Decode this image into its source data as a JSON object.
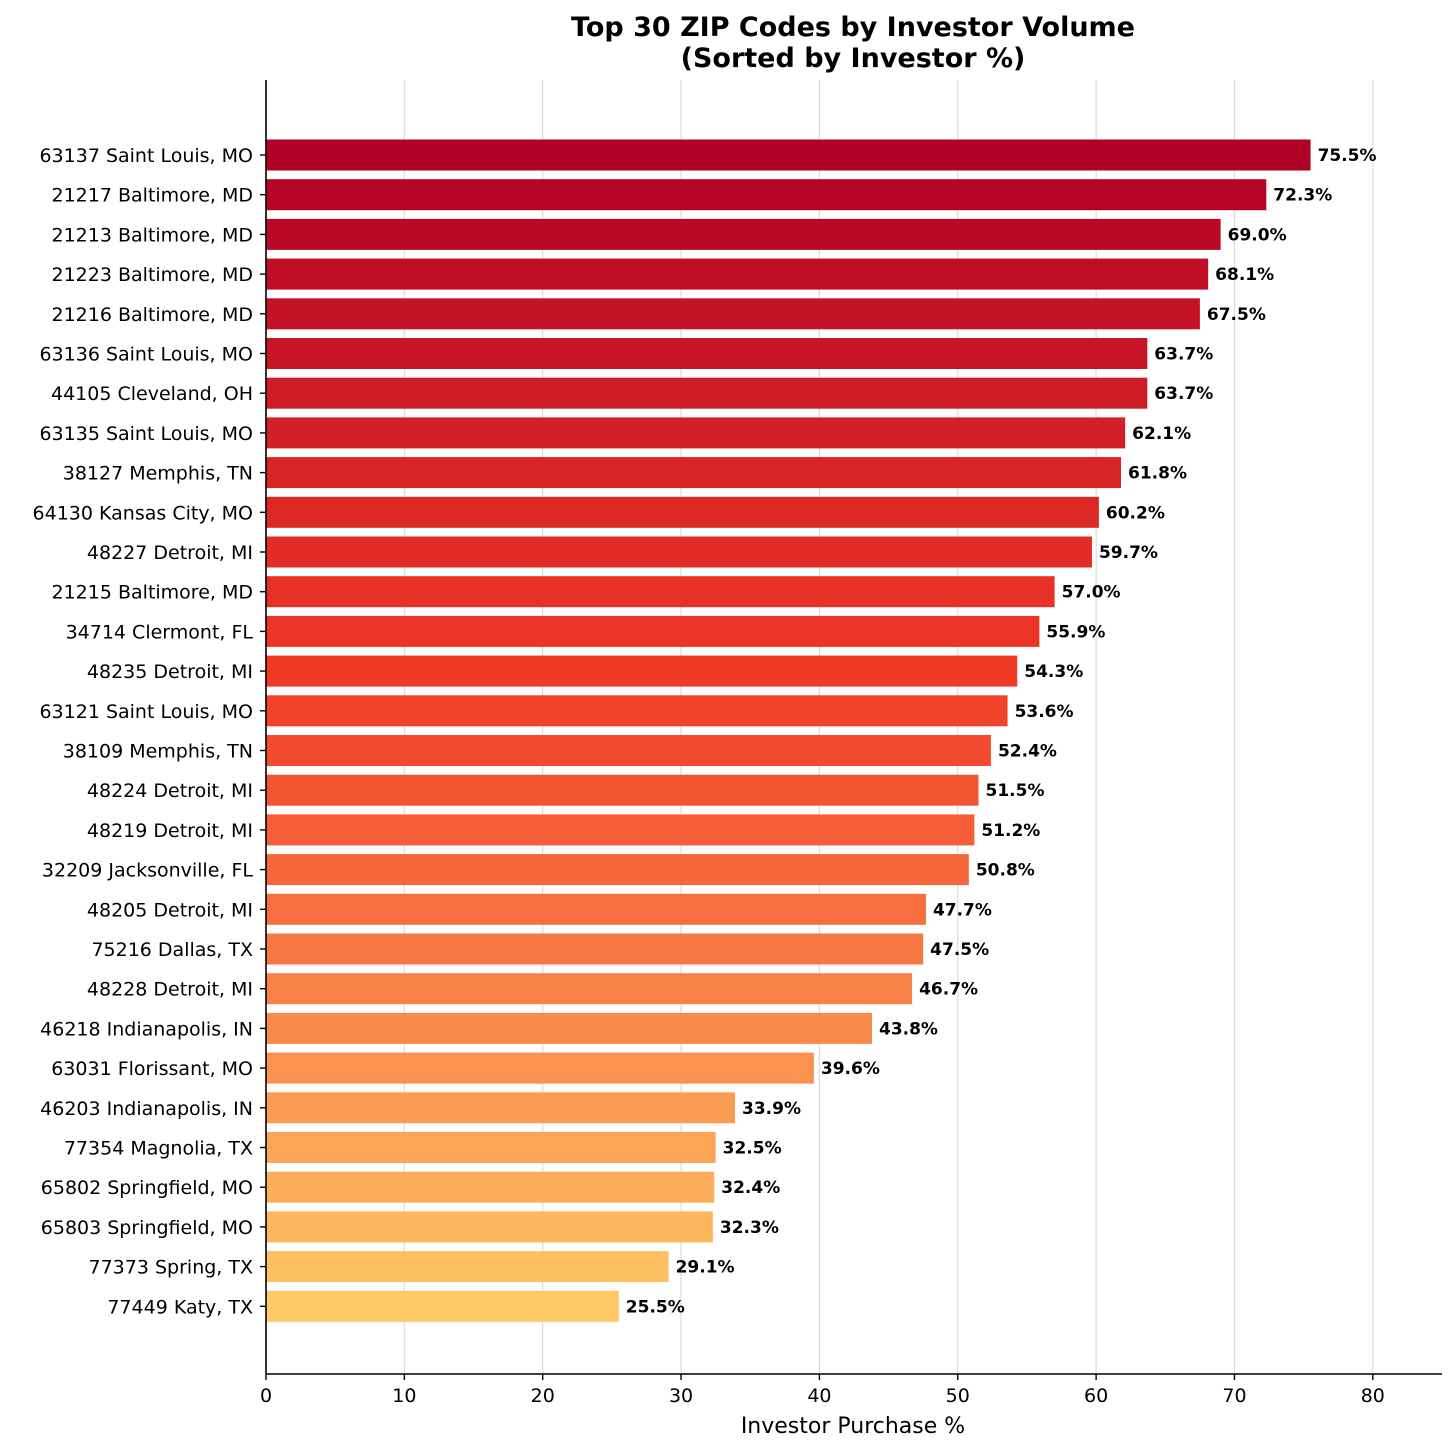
{
  "chart_data": {
    "type": "bar",
    "orientation": "horizontal",
    "title": [
      "Top 30 ZIP Codes by Investor Volume",
      "(Sorted by Investor %)"
    ],
    "xlabel": "Investor Purchase %",
    "ylabel": "",
    "xlim": [
      0,
      85
    ],
    "xticks": [
      0,
      10,
      20,
      30,
      40,
      50,
      60,
      70,
      80
    ],
    "grid": "vertical",
    "value_suffix": "%",
    "categories": [
      "63137 Saint Louis, MO",
      "21217 Baltimore, MD",
      "21213 Baltimore, MD",
      "21223 Baltimore, MD",
      "21216 Baltimore, MD",
      "63136 Saint Louis, MO",
      "44105 Cleveland, OH",
      "63135 Saint Louis, MO",
      "38127 Memphis, TN",
      "64130 Kansas City, MO",
      "48227 Detroit, MI",
      "21215 Baltimore, MD",
      "34714 Clermont, FL",
      "48235 Detroit, MI",
      "63121 Saint Louis, MO",
      "38109 Memphis, TN",
      "48224 Detroit, MI",
      "48219 Detroit, MI",
      "32209 Jacksonville, FL",
      "48205 Detroit, MI",
      "75216 Dallas, TX",
      "48228 Detroit, MI",
      "46218 Indianapolis, IN",
      "63031 Florissant, MO",
      "46203 Indianapolis, IN",
      "77354 Magnolia, TX",
      "65802 Springfield, MO",
      "65803 Springfield, MO",
      "77373 Spring, TX",
      "77449 Katy, TX"
    ],
    "values": [
      75.5,
      72.3,
      69.0,
      68.1,
      67.5,
      63.7,
      63.7,
      62.1,
      61.8,
      60.2,
      59.7,
      57.0,
      55.9,
      54.3,
      53.6,
      52.4,
      51.5,
      51.2,
      50.8,
      47.7,
      47.5,
      46.7,
      43.8,
      39.6,
      33.9,
      32.5,
      32.4,
      32.3,
      29.1,
      25.5
    ],
    "colormap": "YlOrRd",
    "color_range": [
      "#b00026",
      "#fec966"
    ]
  }
}
